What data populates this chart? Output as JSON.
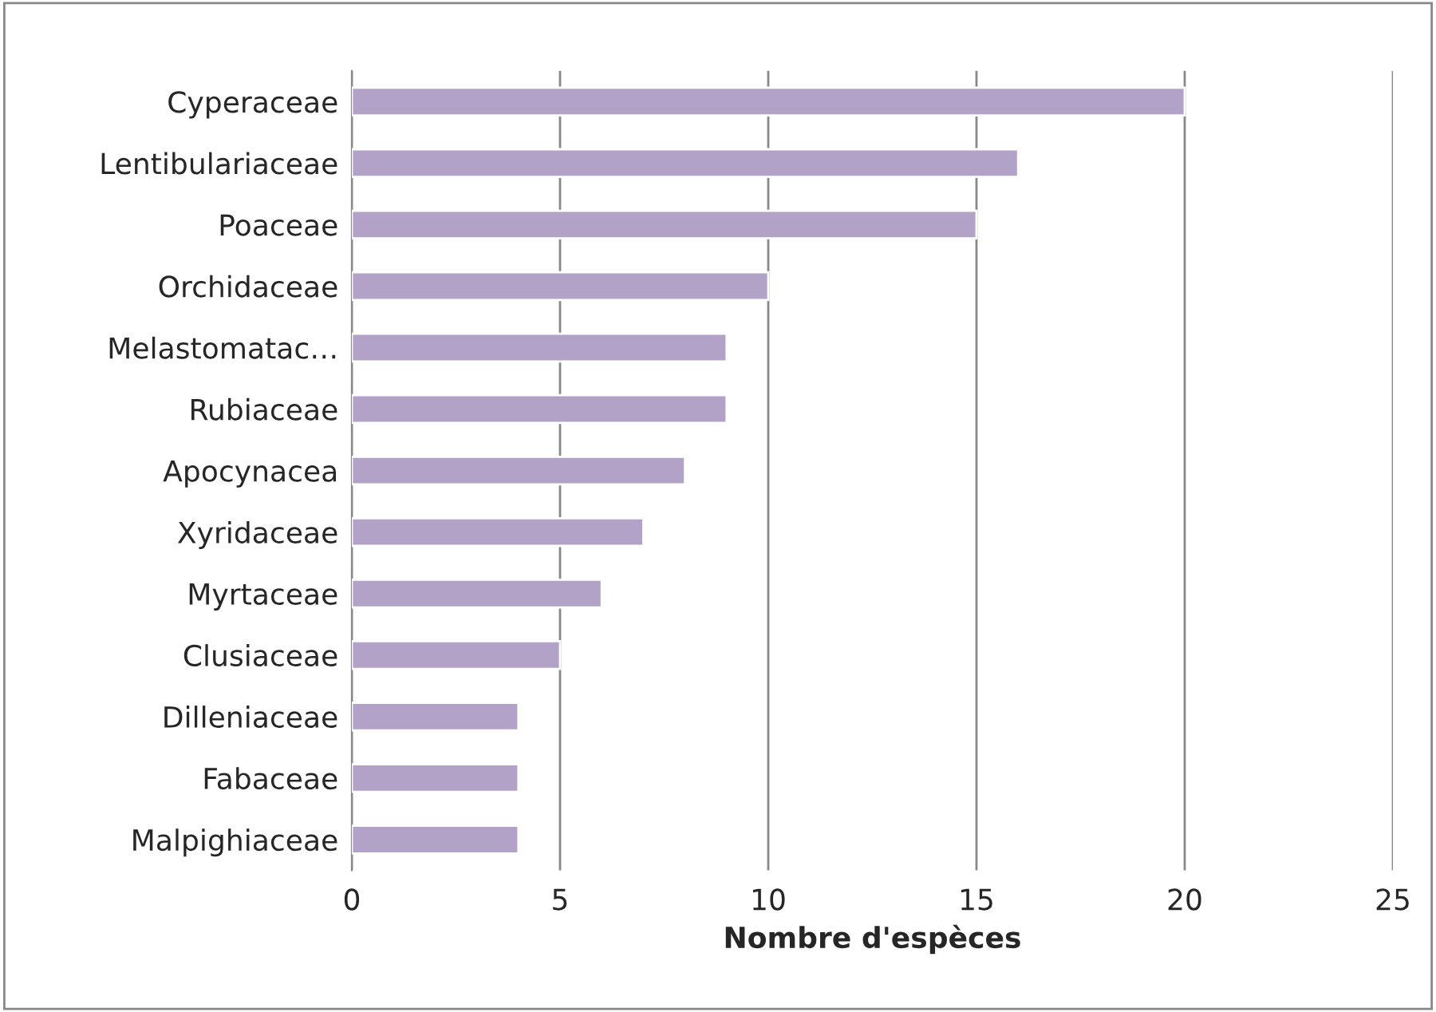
{
  "chart_data": {
    "type": "bar",
    "orientation": "horizontal",
    "xlabel": "Nombre d'espèces",
    "categories": [
      "Cyperaceae",
      "Lentibulariaceae",
      "Poaceae",
      "Orchidaceae",
      "Melastomatac…",
      "Rubiaceae",
      "Apocynacea",
      "Xyridaceae",
      "Myrtaceae",
      "Clusiaceae",
      "Dilleniaceae",
      "Fabaceae",
      "Malpighiaceae"
    ],
    "values": [
      20,
      16,
      15,
      10,
      9,
      9,
      8,
      7,
      6,
      5,
      4,
      4,
      4
    ],
    "color": "#b3a2c7",
    "xlim": [
      0,
      25
    ],
    "xticks": [
      0,
      5,
      10,
      15,
      20,
      25
    ],
    "grid": "x",
    "legend": false
  }
}
